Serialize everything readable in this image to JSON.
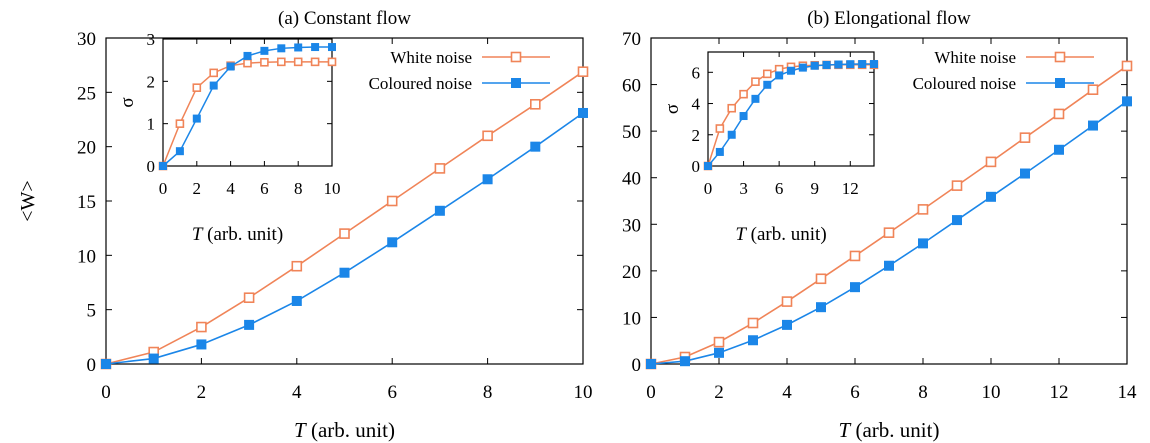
{
  "colors": {
    "white_noise": "#f08458",
    "coloured_noise": "#1b86e8",
    "axis": "#000000"
  },
  "figure": {
    "shared_ylabel": "<W>"
  },
  "chart_data": [
    {
      "type": "line",
      "title": "(a) Constant flow",
      "xlabel_var": "T",
      "xlabel_unit": " (arb. unit)",
      "xlim": [
        0,
        10
      ],
      "ylim": [
        0,
        30
      ],
      "xticks": [
        0,
        2,
        4,
        6,
        8,
        10
      ],
      "yticks": [
        0,
        5,
        10,
        15,
        20,
        25,
        30
      ],
      "grid": false,
      "legend_position": "top-right",
      "x": [
        0,
        1,
        2,
        3,
        4,
        5,
        6,
        7,
        8,
        9,
        10
      ],
      "series": [
        {
          "name": "White noise",
          "marker": "open-square",
          "color": "#f08458",
          "values": [
            0,
            1.1,
            3.4,
            6.1,
            9.0,
            12.0,
            15.0,
            18.0,
            21.0,
            23.9,
            26.9
          ]
        },
        {
          "name": "Coloured noise",
          "marker": "filled-square",
          "color": "#1b86e8",
          "values": [
            0,
            0.5,
            1.8,
            3.6,
            5.8,
            8.4,
            11.2,
            14.1,
            17.0,
            20.0,
            23.1
          ]
        }
      ],
      "inset": {
        "xlabel_var": "T",
        "xlabel_unit": " (arb. unit)",
        "ylabel": "σ",
        "xlim": [
          0,
          10
        ],
        "ylim": [
          0,
          3
        ],
        "xticks": [
          0,
          2,
          4,
          6,
          8,
          10
        ],
        "yticks": [
          0,
          1,
          2,
          3
        ],
        "x": [
          0,
          1,
          2,
          3,
          4,
          5,
          6,
          7,
          8,
          9,
          10
        ],
        "series": [
          {
            "name": "White noise",
            "values": [
              0,
              1.0,
              1.85,
              2.2,
              2.37,
              2.43,
              2.45,
              2.46,
              2.46,
              2.46,
              2.46
            ]
          },
          {
            "name": "Coloured noise",
            "values": [
              0,
              0.35,
              1.12,
              1.9,
              2.35,
              2.6,
              2.72,
              2.78,
              2.8,
              2.81,
              2.81
            ]
          }
        ]
      }
    },
    {
      "type": "line",
      "title": "(b) Elongational flow",
      "xlabel_var": "T",
      "xlabel_unit": " (arb. unit)",
      "xlim": [
        0,
        14
      ],
      "ylim": [
        0,
        70
      ],
      "xticks": [
        0,
        2,
        4,
        6,
        8,
        10,
        12,
        14
      ],
      "yticks": [
        0,
        10,
        20,
        30,
        40,
        50,
        60,
        70
      ],
      "grid": false,
      "legend_position": "top-right",
      "x": [
        0,
        1,
        2,
        3,
        4,
        5,
        6,
        7,
        8,
        9,
        10,
        11,
        12,
        13,
        14
      ],
      "series": [
        {
          "name": "White noise",
          "marker": "open-square",
          "color": "#f08458",
          "values": [
            0,
            1.5,
            4.7,
            8.8,
            13.4,
            18.3,
            23.2,
            28.2,
            33.2,
            38.3,
            43.4,
            48.6,
            53.7,
            58.9,
            64.0
          ]
        },
        {
          "name": "Coloured noise",
          "marker": "filled-square",
          "color": "#1b86e8",
          "values": [
            0,
            0.6,
            2.4,
            5.1,
            8.4,
            12.2,
            16.5,
            21.1,
            25.9,
            30.9,
            35.9,
            40.9,
            46.0,
            51.2,
            56.4
          ]
        }
      ],
      "inset": {
        "xlabel_var": "T",
        "xlabel_unit": " (arb. unit)",
        "ylabel": "σ",
        "xlim": [
          0,
          14
        ],
        "ylim": [
          0,
          7.3
        ],
        "xticks": [
          0,
          3,
          6,
          9,
          12
        ],
        "yticks": [
          0,
          2,
          4,
          6
        ],
        "x": [
          0,
          1,
          2,
          3,
          4,
          5,
          6,
          7,
          8,
          9,
          10,
          11,
          12,
          13,
          14
        ],
        "series": [
          {
            "name": "White noise",
            "values": [
              0,
              2.4,
              3.7,
              4.6,
              5.4,
              5.9,
              6.2,
              6.35,
              6.42,
              6.45,
              6.47,
              6.48,
              6.48,
              6.48,
              6.48
            ]
          },
          {
            "name": "Coloured noise",
            "values": [
              0,
              0.9,
              2.0,
              3.2,
              4.3,
              5.2,
              5.8,
              6.1,
              6.3,
              6.42,
              6.47,
              6.5,
              6.52,
              6.53,
              6.53
            ]
          }
        ]
      }
    }
  ]
}
